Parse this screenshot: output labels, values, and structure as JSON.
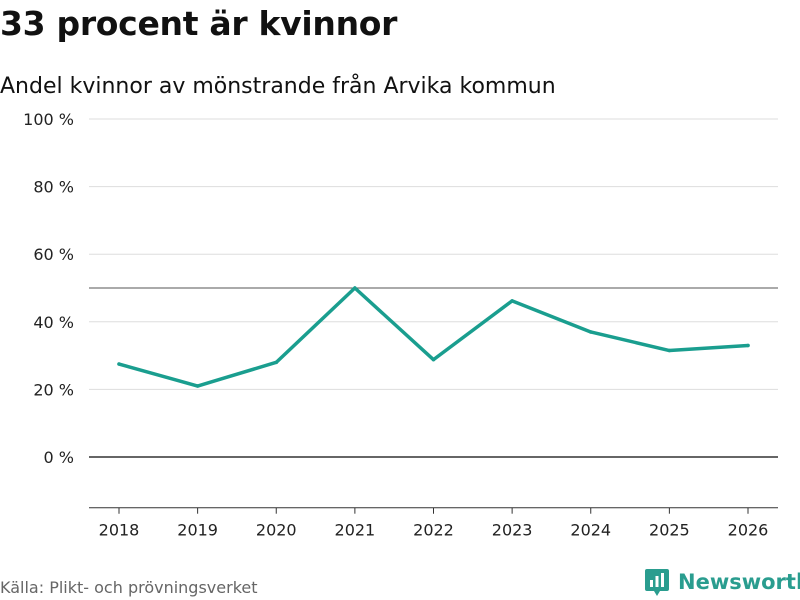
{
  "header": {
    "title": "33 procent är kvinnor",
    "subtitle": "Andel kvinnor av mönstrande från Arvika kommun"
  },
  "footer": {
    "source": "Källa: Plikt- och prövningsverket",
    "brand": "Newsworthy"
  },
  "colors": {
    "line": "#1a9e8f",
    "brand": "#2a9d8f",
    "grid": "#dddddd",
    "axis": "#333333"
  },
  "chart_data": {
    "type": "line",
    "title": "33 procent är kvinnor",
    "subtitle": "Andel kvinnor av mönstrande från Arvika kommun",
    "categories": [
      "2018",
      "2019",
      "2020",
      "2021",
      "2022",
      "2023",
      "2024",
      "2025",
      "2026"
    ],
    "series": [
      {
        "name": "Andel kvinnor",
        "values": [
          27.5,
          21,
          28,
          50,
          28.8,
          46.2,
          37,
          31.5,
          33
        ]
      }
    ],
    "ylim": [
      -15,
      100
    ],
    "yticks": [
      0,
      20,
      40,
      60,
      80,
      100
    ],
    "ytick_labels": [
      "0 %",
      "20 %",
      "40 %",
      "60 %",
      "80 %",
      "100 %"
    ],
    "reference_line": 50,
    "xlabel": "",
    "ylabel": ""
  }
}
